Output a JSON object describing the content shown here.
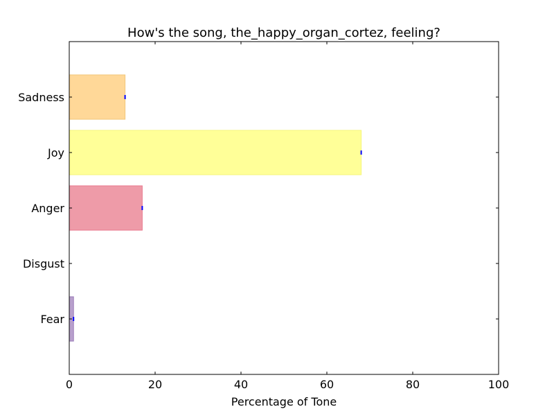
{
  "chart_data": {
    "type": "bar",
    "orientation": "horizontal",
    "title": "How's the song, the_happy_organ_cortez, feeling?",
    "xlabel": "Percentage of Tone",
    "ylabel": "",
    "xlim": [
      0,
      100
    ],
    "xticks": [
      "0",
      "20",
      "40",
      "60",
      "80",
      "100"
    ],
    "grid": false,
    "categories": [
      "Sadness",
      "Joy",
      "Anger",
      "Disgust",
      "Fear"
    ],
    "values": [
      13,
      68,
      17,
      0,
      1
    ],
    "colors": [
      "#FFD898",
      "#FFFF98",
      "#EE9BA8",
      "#C2E5B0",
      "#B8A0CC"
    ],
    "edge_colors": [
      "#F2C77A",
      "#F5F57A",
      "#E8788E",
      "#A8D490",
      "#9A7BB8"
    ],
    "error_marker_color": "#0000ff"
  }
}
